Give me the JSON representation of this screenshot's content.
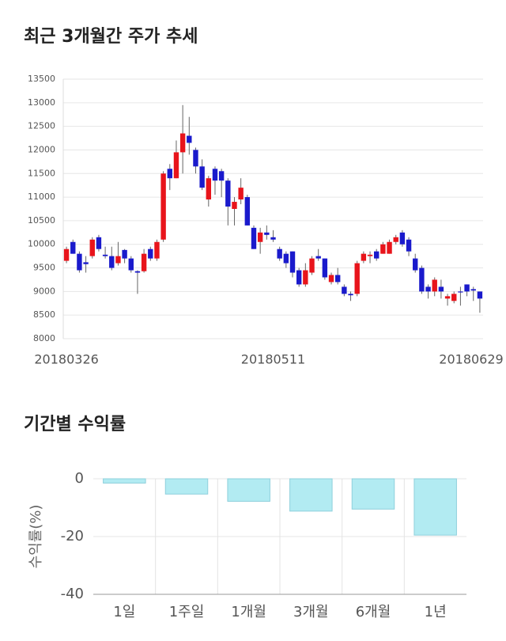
{
  "chart_data": [
    {
      "type": "candlestick",
      "title": "최근 3개월간 주가 추세",
      "categories": [
        "20180326",
        null,
        null,
        null,
        null,
        null,
        null,
        null,
        null,
        null,
        null,
        null,
        null,
        null,
        null,
        null,
        null,
        null,
        null,
        null,
        null,
        null,
        null,
        null,
        null,
        null,
        null,
        null,
        null,
        null,
        null,
        null,
        "20180511",
        null,
        null,
        null,
        null,
        null,
        null,
        null,
        null,
        null,
        null,
        null,
        null,
        null,
        null,
        null,
        null,
        null,
        null,
        null,
        null,
        null,
        null,
        null,
        null,
        null,
        null,
        null,
        null,
        null,
        null,
        null,
        "20180629"
      ],
      "open": [
        9650,
        10050,
        9800,
        9620,
        9750,
        10150,
        9780,
        9750,
        9600,
        9880,
        9700,
        9430,
        9430,
        9900,
        9700,
        10100,
        11600,
        11400,
        11950,
        12300,
        12000,
        11650,
        10950,
        11600,
        11550,
        11350,
        10750,
        10950,
        11000,
        10350,
        10050,
        10250,
        10150,
        9900,
        9800,
        9850,
        9450,
        9150,
        9400,
        9750,
        9700,
        9200,
        9350,
        9100,
        8950,
        8950,
        9650,
        9750,
        9850,
        9800,
        9800,
        10050,
        10250,
        10100,
        9700,
        9500,
        9100,
        9000,
        9100,
        8850,
        8800,
        9000,
        9150,
        9050,
        9000
      ],
      "high": [
        9950,
        10100,
        9850,
        9750,
        10150,
        10200,
        9950,
        9950,
        10050,
        9900,
        9750,
        9450,
        9900,
        9950,
        10100,
        11550,
        11700,
        12200,
        12950,
        12700,
        12050,
        11800,
        11450,
        11650,
        11600,
        11400,
        11000,
        11400,
        11050,
        10400,
        10350,
        10400,
        10300,
        9950,
        9850,
        9850,
        9500,
        9600,
        9750,
        9900,
        9700,
        9400,
        9500,
        9150,
        9000,
        9650,
        9850,
        9850,
        9900,
        10050,
        10100,
        10200,
        10300,
        10150,
        9800,
        9550,
        9150,
        9300,
        9250,
        8950,
        9000,
        9100,
        9150,
        9100,
        9000
      ],
      "low": [
        9600,
        9800,
        9400,
        9400,
        9700,
        9850,
        9700,
        9450,
        9550,
        9600,
        9400,
        8950,
        9400,
        9650,
        9650,
        10050,
        11150,
        11400,
        11500,
        11900,
        11500,
        11150,
        10800,
        11050,
        11000,
        10400,
        10400,
        10850,
        10400,
        9900,
        9800,
        10100,
        10050,
        9650,
        9500,
        9300,
        9100,
        9100,
        9350,
        9650,
        9250,
        9150,
        9150,
        8900,
        8800,
        8900,
        9600,
        9600,
        9650,
        9800,
        9800,
        10000,
        9950,
        9750,
        9400,
        8950,
        8850,
        8900,
        8850,
        8700,
        8750,
        8700,
        8900,
        8800,
        8550
      ],
      "close": [
        9900,
        9800,
        9450,
        9580,
        10100,
        9900,
        9750,
        9500,
        9750,
        9700,
        9450,
        9400,
        9800,
        9700,
        10050,
        11500,
        11400,
        11950,
        12350,
        12150,
        11650,
        11200,
        11400,
        11350,
        11350,
        10800,
        10900,
        11200,
        10400,
        9900,
        10250,
        10200,
        10100,
        9700,
        9600,
        9400,
        9150,
        9450,
        9700,
        9700,
        9300,
        9350,
        9200,
        8950,
        8920,
        9600,
        9800,
        9780,
        9700,
        10000,
        10050,
        10150,
        10000,
        9850,
        9450,
        9000,
        9000,
        9250,
        9000,
        8900,
        8950,
        8980,
        9000,
        9020,
        8850
      ],
      "up_color": "#e8141b",
      "down_color": "#1a1acc",
      "ylim": [
        8000,
        13500
      ],
      "yticks": [
        8000,
        8500,
        9000,
        9500,
        10000,
        10500,
        11000,
        11500,
        12000,
        12500,
        13000,
        13500
      ],
      "grid": true
    },
    {
      "type": "bar",
      "title": "기간별 수익률",
      "y_label": "수익률(%)",
      "categories": [
        "1일",
        "1주일",
        "1개월",
        "3개월",
        "6개월",
        "1년"
      ],
      "values": [
        -1.5,
        -5.3,
        -7.8,
        -11.2,
        -10.5,
        -19.5
      ],
      "color": "#b2ebf2",
      "ylim": [
        -40,
        0
      ],
      "yticks": [
        0,
        -20,
        -40
      ],
      "grid": true
    }
  ]
}
